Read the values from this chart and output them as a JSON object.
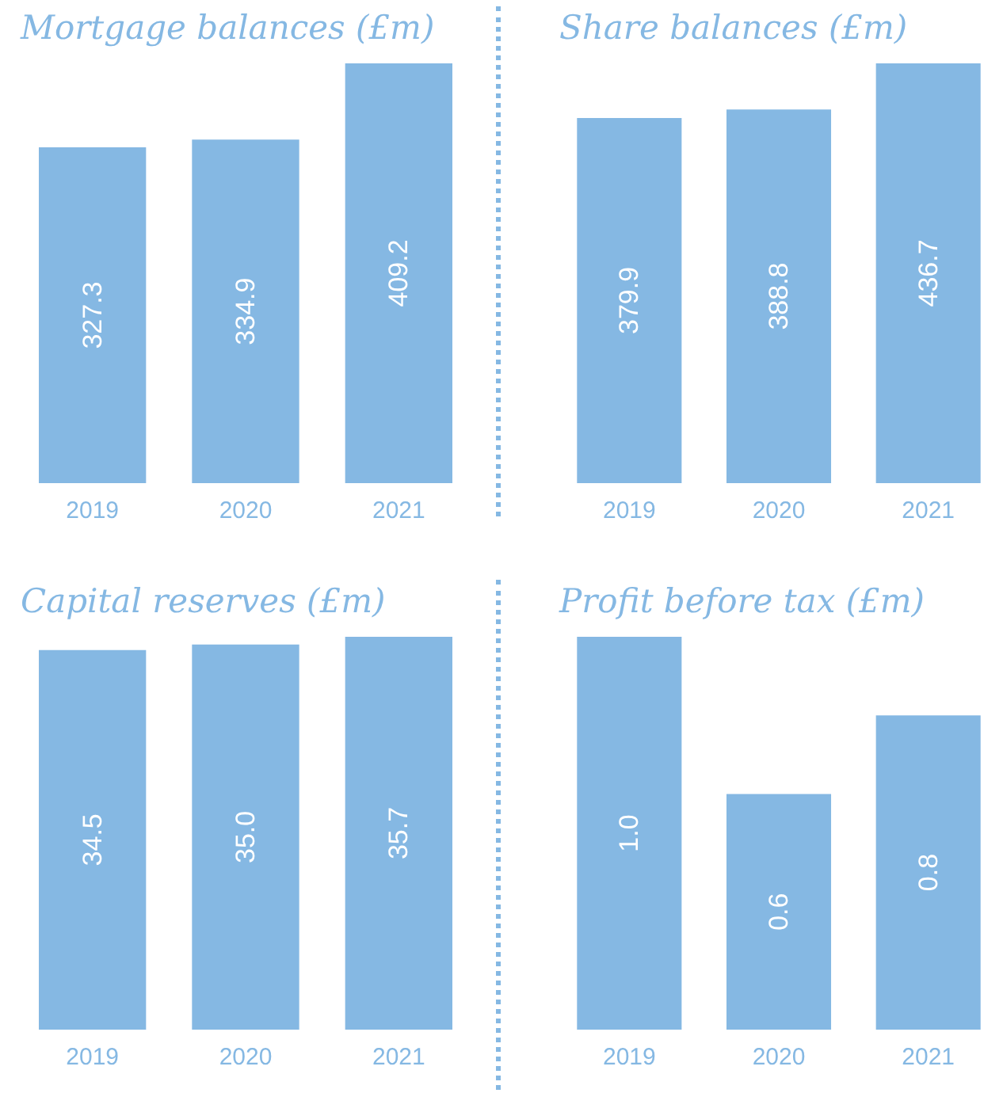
{
  "chart_data": [
    {
      "type": "bar",
      "title": "Mortgage balances (£m)",
      "categories": [
        "2019",
        "2020",
        "2021"
      ],
      "values": [
        327.3,
        334.9,
        409.2
      ],
      "value_labels": [
        "327.3",
        "334.9",
        "409.2"
      ],
      "color": "#85b8e3"
    },
    {
      "type": "bar",
      "title": "Share balances (£m)",
      "categories": [
        "2019",
        "2020",
        "2021"
      ],
      "values": [
        379.9,
        388.8,
        436.7
      ],
      "value_labels": [
        "379.9",
        "388.8",
        "436.7"
      ],
      "color": "#85b8e3"
    },
    {
      "type": "bar",
      "title": "Capital reserves (£m)",
      "categories": [
        "2019",
        "2020",
        "2021"
      ],
      "values": [
        34.5,
        35.0,
        35.7
      ],
      "value_labels": [
        "34.5",
        "35.0",
        "35.7"
      ],
      "color": "#85b8e3"
    },
    {
      "type": "bar",
      "title": "Profit before tax (£m)",
      "categories": [
        "2019",
        "2020",
        "2021"
      ],
      "values": [
        1.0,
        0.6,
        0.8
      ],
      "value_labels": [
        "1.0",
        "0.6",
        "0.8"
      ],
      "color": "#85b8e3"
    }
  ]
}
